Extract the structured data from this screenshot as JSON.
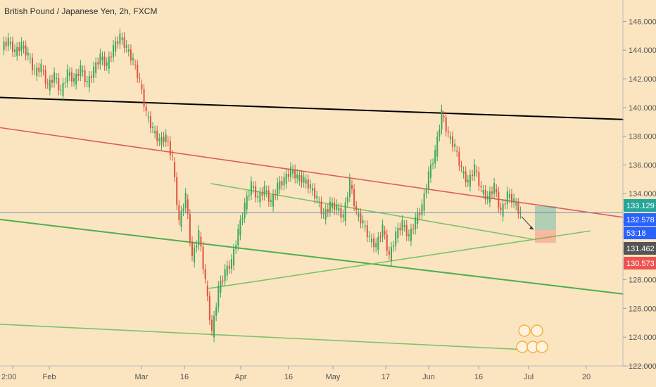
{
  "chart_data": {
    "type": "line",
    "title": "British Pound / Japanese Yen, 2h, FXCM",
    "y_ticks": [
      "146.000",
      "144.000",
      "142.000",
      "140.000",
      "138.000",
      "136.000",
      "134.000",
      "132.000",
      "130.000",
      "128.000",
      "126.000",
      "124.000",
      "122.000"
    ],
    "x_ticks": [
      "2:00",
      "Feb",
      "Mar",
      "16",
      "Apr",
      "16",
      "May",
      "17",
      "Jun",
      "16",
      "Jul",
      "20"
    ],
    "price_labels": [
      {
        "value": "133.129",
        "color": "#26a69a"
      },
      {
        "value": "132.578",
        "color": "#2962ff"
      },
      {
        "value": "53:18",
        "color": "#2962ff"
      },
      {
        "value": "131.462",
        "color": "#555555"
      },
      {
        "value": "130.573",
        "color": "#ef5350"
      }
    ],
    "series": [
      {
        "values": [
          144.2,
          144.6,
          143.8,
          144.3,
          143.6,
          142.4,
          142.8,
          141.4,
          142.2,
          141.0,
          142.4,
          141.8,
          142.7,
          141.6,
          142.6,
          143.5,
          142.9,
          144.1,
          144.9,
          144.1,
          143.2,
          141.8,
          139.5,
          138.4,
          137.6,
          137.9,
          136.4,
          131.9,
          133.8,
          129.4,
          131.2,
          127.8,
          124.2,
          127.3,
          128.5,
          129.2,
          131.3,
          133.1,
          134.6,
          133.6,
          134.3,
          133.3,
          134.5,
          134.9,
          135.6,
          135.1,
          134.9,
          134.4,
          133.6,
          132.4,
          133.2,
          133.0,
          132.3,
          134.8,
          132.6,
          131.9,
          130.8,
          130.3,
          131.6,
          129.5,
          131.1,
          131.9,
          130.9,
          132.1,
          133.0,
          135.3,
          136.8,
          139.6,
          138.0,
          137.2,
          135.6,
          134.7,
          135.8,
          134.2,
          133.6,
          134.5,
          132.6,
          133.9,
          133.4,
          132.5
        ]
      }
    ],
    "trendlines": [
      {
        "color": "#000000",
        "points": [
          [
            "2:00",
            140.7
          ],
          [
            "Jul",
            139.4
          ]
        ]
      },
      {
        "color": "#e05a5a",
        "points": [
          [
            "2:00",
            138.6
          ],
          [
            "Jul",
            133.3
          ]
        ]
      },
      {
        "color": "#4caf50",
        "points": [
          [
            "2:00",
            132.2
          ],
          [
            "Jul",
            127.8
          ]
        ]
      },
      {
        "color": "#7cc36b",
        "points": [
          [
            "2:00",
            124.9
          ],
          [
            "Jul",
            123.1
          ]
        ]
      },
      {
        "color": "#7cc36b",
        "points": [
          [
            "16",
            134.7
          ],
          [
            "Jul",
            130.8
          ]
        ]
      },
      {
        "color": "#7cc36b",
        "points": [
          [
            "16",
            127.4
          ],
          [
            "Jul",
            131.4
          ]
        ]
      }
    ],
    "ylim": [
      122,
      147
    ],
    "position_zone": {
      "target": 133.129,
      "entry": 131.462,
      "stop": 130.573
    }
  }
}
